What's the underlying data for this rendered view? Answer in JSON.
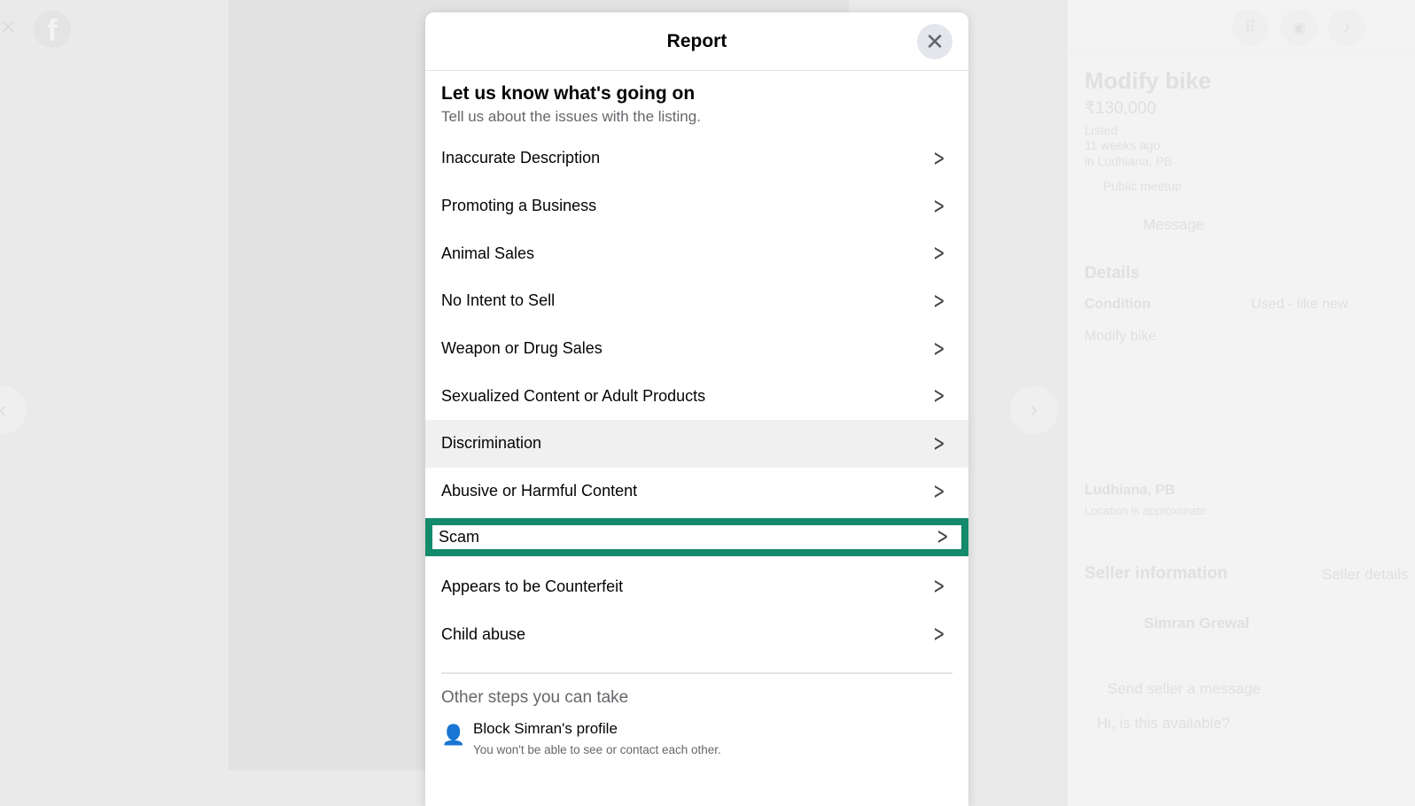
{
  "background": {
    "listing_title": "Modify bike",
    "price": "₹130,000",
    "listed": "Listed",
    "time": "11 weeks ago",
    "location": "in Ludhiana, PB",
    "meetup": "Public meetup",
    "message_button": "Message",
    "details_heading": "Details",
    "condition_label": "Condition",
    "condition_value": "Used - like new",
    "description": "Modify bike",
    "map_location": "Ludhiana, PB",
    "map_note": "Location is approximate",
    "seller_heading": "Seller information",
    "seller_details": "Seller details",
    "seller_name": "Simran Grewal",
    "send_message": "Send seller a message",
    "message_placeholder": "Hi, is this available?"
  },
  "modal": {
    "title": "Report",
    "heading": "Let us know what's going on",
    "subheading": "Tell us about the issues with the listing.",
    "items": [
      {
        "label": "Inaccurate Description"
      },
      {
        "label": "Promoting a Business"
      },
      {
        "label": "Animal Sales"
      },
      {
        "label": "No Intent to Sell"
      },
      {
        "label": "Weapon or Drug Sales"
      },
      {
        "label": "Sexualized Content or Adult Products"
      },
      {
        "label": "Discrimination"
      },
      {
        "label": "Abusive or Harmful Content"
      },
      {
        "label": "Scam"
      },
      {
        "label": "Appears to be Counterfeit"
      },
      {
        "label": "Child abuse"
      }
    ],
    "other_heading": "Other steps you can take",
    "block_title": "Block Simran's profile",
    "block_sub": "You won't be able to see or contact each other."
  },
  "colors": {
    "highlight": "#138a6c"
  }
}
